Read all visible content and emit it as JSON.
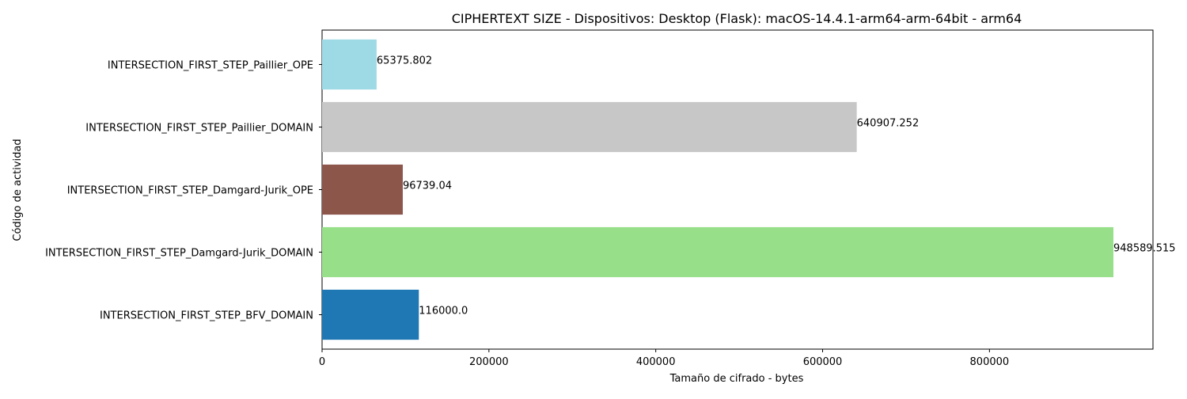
{
  "chart_data": {
    "type": "bar",
    "orientation": "horizontal",
    "title": "CIPHERTEXT SIZE - Dispositivos: Desktop (Flask): macOS-14.4.1-arm64-arm-64bit - arm64",
    "xlabel": "Tamaño de cifrado - bytes",
    "ylabel": "Código de actividad",
    "categories": [
      "INTERSECTION_FIRST_STEP_BFV_DOMAIN",
      "INTERSECTION_FIRST_STEP_Damgard-Jurik_DOMAIN",
      "INTERSECTION_FIRST_STEP_Damgard-Jurik_OPE",
      "INTERSECTION_FIRST_STEP_Paillier_DOMAIN",
      "INTERSECTION_FIRST_STEP_Paillier_OPE"
    ],
    "values": [
      116000.0,
      948589.515,
      96739.04,
      640907.252,
      65375.802
    ],
    "value_labels": [
      "116000.0",
      "948589.515",
      "96739.04",
      "640907.252",
      "65375.802"
    ],
    "colors": [
      "#1f77b4",
      "#98df8a",
      "#8c564b",
      "#c7c7c7",
      "#9edae5"
    ],
    "xlim": [
      0,
      996018.99
    ],
    "xticks": [
      0,
      200000,
      400000,
      600000,
      800000
    ],
    "xtick_labels": [
      "0",
      "200000",
      "400000",
      "600000",
      "800000"
    ],
    "grid": false,
    "legend": "none"
  }
}
